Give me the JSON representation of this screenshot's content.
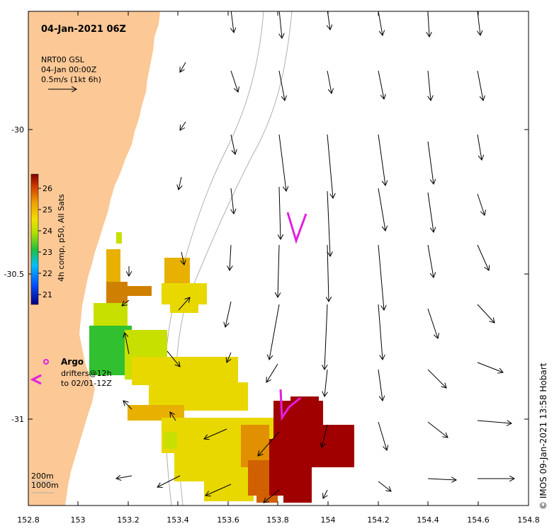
{
  "title": "04-Jan-2021 06Z",
  "product": {
    "line1": "NRT00 GSL",
    "line2": "04-Jan 00:00Z",
    "line3": "0.5m/s (1kt 6h)"
  },
  "colorbar": {
    "label": "4h comp, p50, All Sats",
    "ticks": [
      "26",
      "25",
      "24",
      "23",
      "22",
      "21"
    ]
  },
  "axes": {
    "x_ticks": [
      "152.8",
      "153",
      "153.2",
      "153.4",
      "153.6",
      "153.8",
      "154",
      "154.2",
      "154.4",
      "154.6",
      "154.8"
    ],
    "y_ticks": [
      "-30",
      "-30.5",
      "-31"
    ]
  },
  "legend": {
    "argo": "Argo",
    "drifters_line1": "drifters@12h",
    "drifters_line2": "to 02/01-12Z"
  },
  "depth": {
    "line1": "200m",
    "line2": "1000m"
  },
  "credit": "© IMOS 09-Jan-2021 13:58 Hobart",
  "colors": {
    "land": "#fbc896",
    "drifter": "#e020e0",
    "sst_hot": "#a00000"
  },
  "icons": [
    "argo-float-icon",
    "drifter-track-icon",
    "current-arrow-icon"
  ]
}
